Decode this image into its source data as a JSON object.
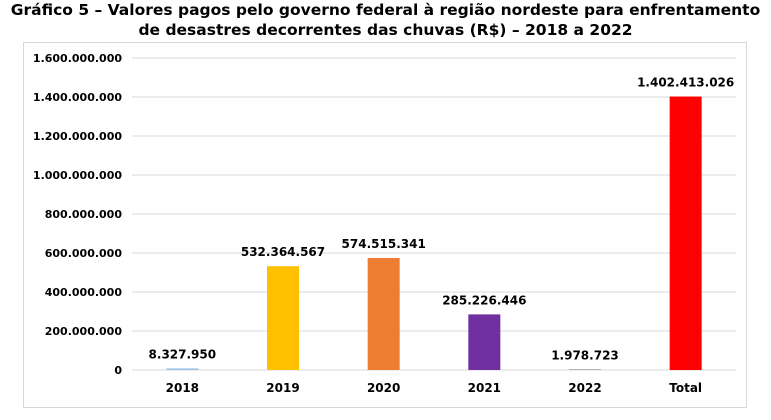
{
  "title": {
    "line1": "Gráfico 5 – Valores pagos pelo governo federal à região nordeste para enfrentamento",
    "line2": "de desastres decorrentes das chuvas (R$) – 2018 a 2022"
  },
  "chart_data": {
    "type": "bar",
    "categories": [
      "2018",
      "2019",
      "2020",
      "2021",
      "2022",
      "Total"
    ],
    "values": [
      8327950,
      532364567,
      574515341,
      285226446,
      1978723,
      1402413026
    ],
    "value_labels": [
      "8.327.950",
      "532.364.567",
      "574.515.341",
      "285.226.446",
      "1.978.723",
      "1.402.413.026"
    ],
    "bar_colors": [
      "#9dc3e6",
      "#ffc000",
      "#ed7d31",
      "#7030a0",
      "#a5a5a5",
      "#ff0000"
    ],
    "ylim": [
      0,
      1600000000
    ],
    "yticks": [
      0,
      200000000,
      400000000,
      600000000,
      800000000,
      1000000000,
      1200000000,
      1400000000,
      1600000000
    ],
    "ytick_labels": [
      "0",
      "200.000.000",
      "400.000.000",
      "600.000.000",
      "800.000.000",
      "1.000.000.000",
      "1.200.000.000",
      "1.400.000.000",
      "1.600.000.000"
    ],
    "grid": true,
    "legend": "none"
  }
}
